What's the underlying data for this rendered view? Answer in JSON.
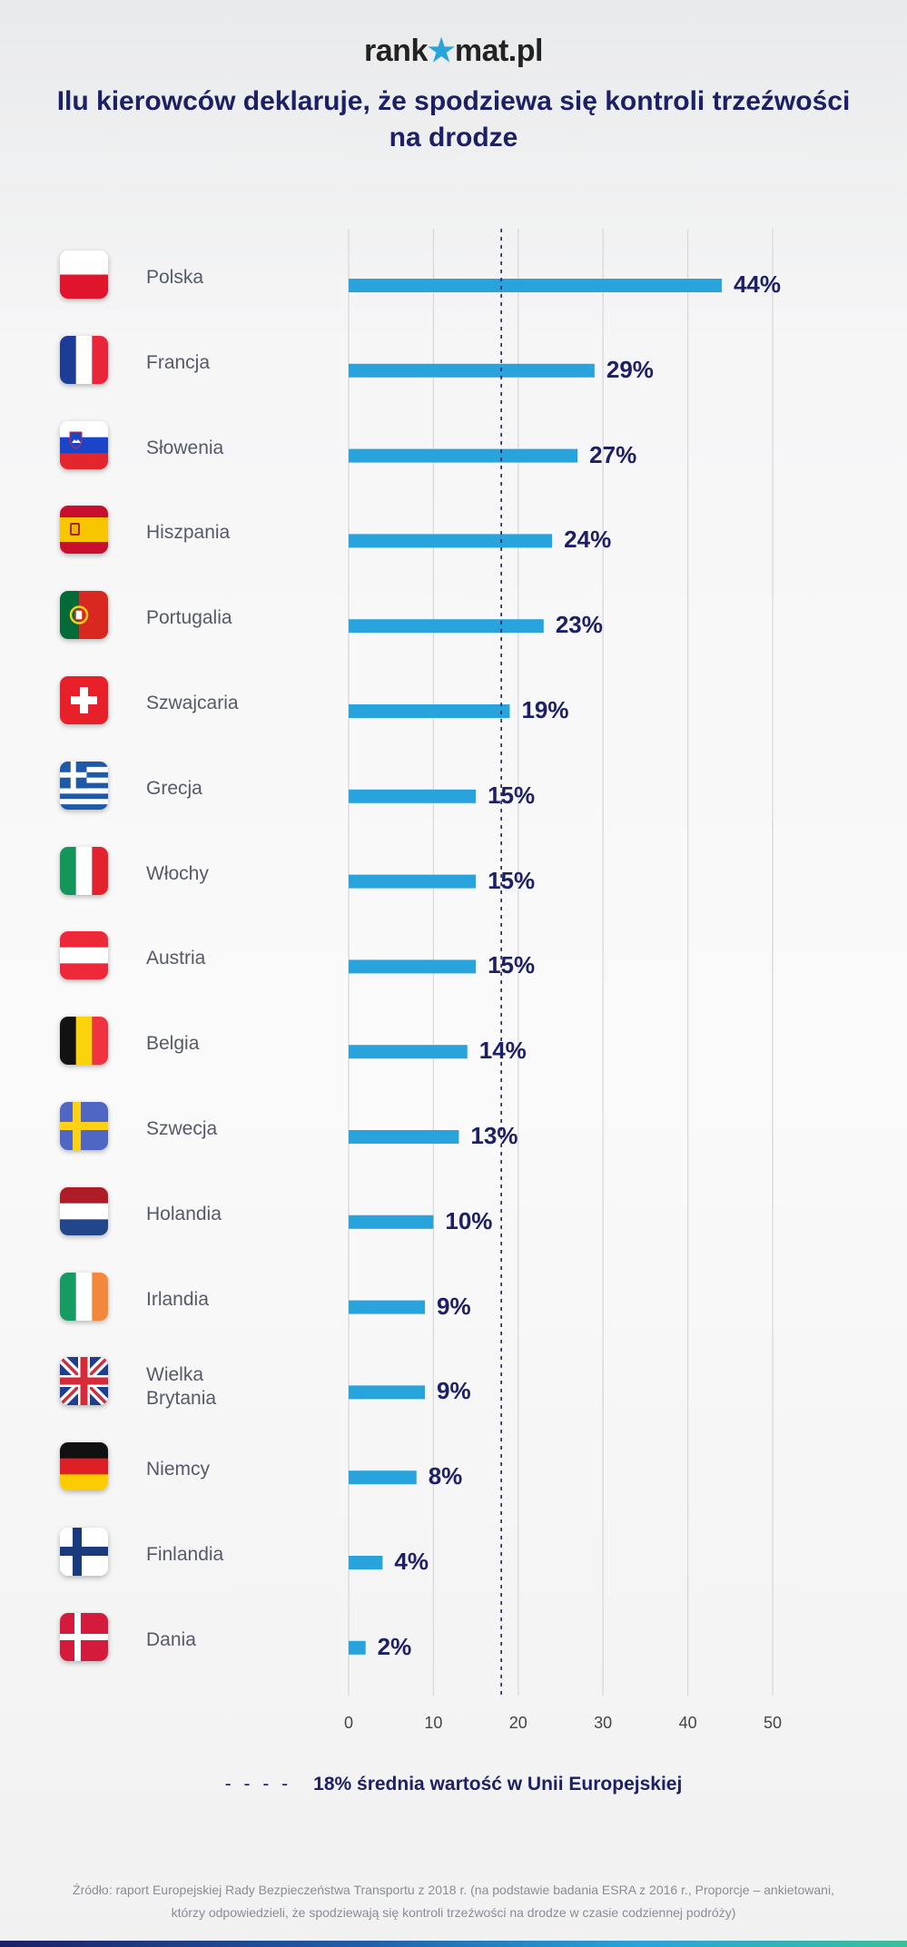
{
  "header": {
    "logo_left": "rank",
    "logo_star": "★",
    "logo_right": "mat.pl",
    "title": "Ilu kierowców deklaruje, że spodziewa się kontroli trzeźwości na drodze"
  },
  "colors": {
    "bar": "#29a3dc",
    "text_dark": "#1d2066",
    "grid": "#d9d9dc"
  },
  "chart_data": {
    "type": "bar",
    "orientation": "horizontal",
    "categories": [
      "Polska",
      "Francja",
      "Słowenia",
      "Hiszpania",
      "Portugalia",
      "Szwajcaria",
      "Grecja",
      "Włochy",
      "Austria",
      "Belgia",
      "Szwecja",
      "Holandia",
      "Irlandia",
      "Wielka Brytania",
      "Niemcy",
      "Finlandia",
      "Dania"
    ],
    "category_lines": [
      [
        "Polska"
      ],
      [
        "Francja"
      ],
      [
        "Słowenia"
      ],
      [
        "Hiszpania"
      ],
      [
        "Portugalia"
      ],
      [
        "Szwajcaria"
      ],
      [
        "Grecja"
      ],
      [
        "Włochy"
      ],
      [
        "Austria"
      ],
      [
        "Belgia"
      ],
      [
        "Szwecja"
      ],
      [
        "Holandia"
      ],
      [
        "Irlandia"
      ],
      [
        "Wielka",
        "Brytania"
      ],
      [
        "Niemcy"
      ],
      [
        "Finlandia"
      ],
      [
        "Dania"
      ]
    ],
    "values": [
      44,
      29,
      27,
      24,
      23,
      19,
      15,
      15,
      15,
      14,
      13,
      10,
      9,
      9,
      8,
      4,
      2
    ],
    "value_labels": [
      "44%",
      "29%",
      "27%",
      "24%",
      "23%",
      "19%",
      "15%",
      "15%",
      "15%",
      "14%",
      "13%",
      "10%",
      "9%",
      "9%",
      "8%",
      "4%",
      "2%"
    ],
    "flags": [
      "poland",
      "france",
      "slovenia",
      "spain",
      "portugal",
      "switzerland",
      "greece",
      "italy",
      "austria",
      "belgium",
      "sweden",
      "netherlands",
      "ireland",
      "uk",
      "germany",
      "finland",
      "denmark"
    ],
    "xlim": [
      0,
      50
    ],
    "xticks": [
      0,
      10,
      20,
      30,
      40,
      50
    ],
    "grid": true,
    "reference_line": {
      "value": 18,
      "label": "18% średnia wartość w Unii Europejskiej",
      "style": "dashed"
    }
  },
  "legend": {
    "dash": "- - - -",
    "label": "18% średnia wartość w Unii Europejskiej"
  },
  "footer": {
    "source_line1": "Źródło: raport Europejskiej Rady Bezpieczeństwa Transportu z 2018 r. (na podstawie badania ESRA z 2016 r., Proporcje – ankietowani,",
    "source_line2": "którzy odpowiedzieli, że spodziewają się kontroli trzeźwości na drodze w czasie codziennej podróży)"
  }
}
